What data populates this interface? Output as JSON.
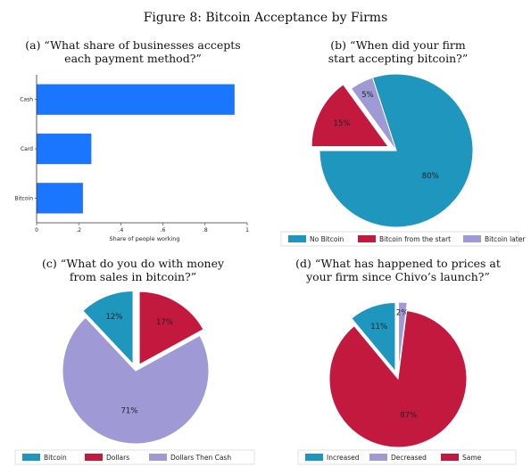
{
  "figure_title": "Figure 8: Bitcoin Acceptance by Firms",
  "chart_data": [
    {
      "type": "bar",
      "orientation": "horizontal",
      "title_lines": [
        "(a) “What share of businesses accepts",
        "each payment method?”"
      ],
      "categories": [
        "Cash",
        "Card",
        "Bitcoin"
      ],
      "values": [
        0.94,
        0.26,
        0.22
      ],
      "xlabel": "Share of people working",
      "xlim": [
        0,
        1
      ],
      "xticks": [
        0,
        0.2,
        0.4,
        0.6,
        0.8,
        1
      ],
      "xtick_labels": [
        "0",
        ".2",
        ".4",
        ".6",
        ".8",
        "1"
      ],
      "color": "#1a75ff",
      "grid": false
    },
    {
      "type": "pie",
      "title_lines": [
        "(b) “When did your firm",
        "start accepting bitcoin?”"
      ],
      "labels": [
        "No Bitcoin",
        "Bitcoin from the start",
        "Bitcoin later"
      ],
      "values": [
        80,
        15,
        5
      ],
      "value_labels": [
        "80%",
        "15%",
        "5%"
      ],
      "colors": [
        "#1e96be",
        "#c4193f",
        "#9f99d6"
      ],
      "exploded": [
        false,
        true,
        false
      ],
      "legend_position": "bottom"
    },
    {
      "type": "pie",
      "title_lines": [
        "(c) “What do you do with money",
        "from sales in bitcoin?”"
      ],
      "labels": [
        "Bitcoin",
        "Dollars",
        "Dollars Then Cash"
      ],
      "values": [
        12,
        17,
        71
      ],
      "value_labels": [
        "12%",
        "17%",
        "71%"
      ],
      "colors": [
        "#1e96be",
        "#c4193f",
        "#9f99d6"
      ],
      "exploded": [
        true,
        true,
        false
      ],
      "legend_position": "bottom"
    },
    {
      "type": "pie",
      "title_lines": [
        "(d) “What has happened to prices at",
        "your firm since Chivo’s launch?”"
      ],
      "labels": [
        "Increased",
        "Decreased",
        "Same"
      ],
      "values": [
        11,
        2,
        87
      ],
      "value_labels": [
        "11%",
        "2%",
        "87%"
      ],
      "colors": [
        "#1e96be",
        "#9f99d6",
        "#c4193f"
      ],
      "exploded": [
        true,
        true,
        false
      ],
      "legend_position": "bottom"
    }
  ]
}
